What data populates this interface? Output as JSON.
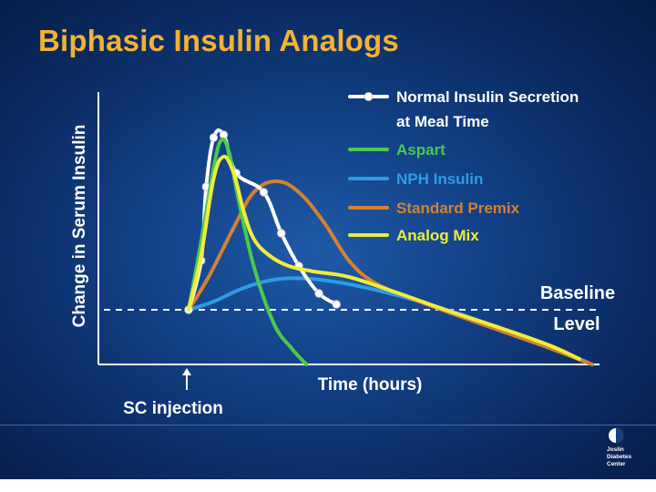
{
  "slide": {
    "title": "Biphasic Insulin Analogs",
    "logo_text": "Joslin\nDiabetes\nCenter"
  },
  "chart_data": {
    "type": "line",
    "ylabel": "Change in Serum Insulin",
    "xlabel": "Time (hours)",
    "x_annotation": "SC injection",
    "baseline_label": [
      "Baseline",
      "Level"
    ],
    "xlim": [
      0,
      10
    ],
    "ylim": [
      0,
      10
    ],
    "baseline_y": 2,
    "injection_x": 1.8,
    "legend_placement": "top-right",
    "series": [
      {
        "name": "Normal Insulin Secretion at Meal Time",
        "legend_lines": [
          "Normal Insulin Secretion",
          "at Meal Time"
        ],
        "color": "#ffffff",
        "markers": true,
        "points": [
          [
            1.8,
            2.0
          ],
          [
            2.05,
            3.8
          ],
          [
            2.15,
            6.5
          ],
          [
            2.3,
            8.3
          ],
          [
            2.5,
            8.4
          ],
          [
            2.75,
            7.0
          ],
          [
            3.3,
            6.3
          ],
          [
            3.65,
            4.8
          ],
          [
            4.0,
            3.6
          ],
          [
            4.4,
            2.6
          ],
          [
            4.75,
            2.2
          ]
        ]
      },
      {
        "name": "Aspart",
        "color": "#4cc94c",
        "markers": false,
        "points": [
          [
            1.8,
            2.0
          ],
          [
            2.05,
            4.5
          ],
          [
            2.3,
            7.2
          ],
          [
            2.45,
            8.2
          ],
          [
            2.6,
            7.8
          ],
          [
            2.8,
            6.0
          ],
          [
            3.1,
            3.6
          ],
          [
            3.5,
            1.5
          ],
          [
            3.85,
            0.6
          ],
          [
            4.15,
            0.0
          ]
        ]
      },
      {
        "name": "NPH Insulin",
        "color": "#2e9be6",
        "markers": false,
        "points": [
          [
            1.8,
            2.0
          ],
          [
            2.3,
            2.3
          ],
          [
            2.9,
            2.8
          ],
          [
            3.5,
            3.1
          ],
          [
            4.1,
            3.15
          ],
          [
            4.8,
            3.0
          ],
          [
            5.6,
            2.7
          ],
          [
            6.6,
            2.2
          ],
          [
            7.6,
            1.6
          ],
          [
            8.6,
            0.9
          ],
          [
            9.6,
            0.2
          ],
          [
            9.85,
            0.0
          ]
        ]
      },
      {
        "name": "Standard Premix",
        "color": "#d4822e",
        "markers": false,
        "points": [
          [
            1.8,
            2.0
          ],
          [
            2.2,
            3.2
          ],
          [
            2.7,
            5.0
          ],
          [
            3.1,
            6.3
          ],
          [
            3.55,
            6.7
          ],
          [
            4.0,
            6.3
          ],
          [
            4.5,
            5.2
          ],
          [
            5.0,
            3.8
          ],
          [
            5.5,
            3.0
          ],
          [
            6.2,
            2.45
          ],
          [
            7.0,
            1.9
          ],
          [
            8.0,
            1.25
          ],
          [
            9.0,
            0.6
          ],
          [
            9.85,
            0.0
          ]
        ]
      },
      {
        "name": "Analog Mix",
        "color": "#f0ec3c",
        "markers": false,
        "points": [
          [
            1.8,
            2.0
          ],
          [
            2.05,
            4.0
          ],
          [
            2.3,
            6.8
          ],
          [
            2.5,
            7.6
          ],
          [
            2.7,
            7.0
          ],
          [
            2.9,
            5.6
          ],
          [
            3.1,
            4.6
          ],
          [
            3.4,
            4.0
          ],
          [
            3.8,
            3.6
          ],
          [
            4.3,
            3.4
          ],
          [
            5.0,
            3.2
          ],
          [
            6.0,
            2.6
          ],
          [
            7.0,
            1.95
          ],
          [
            8.0,
            1.35
          ],
          [
            9.0,
            0.7
          ],
          [
            9.6,
            0.2
          ]
        ]
      }
    ]
  }
}
